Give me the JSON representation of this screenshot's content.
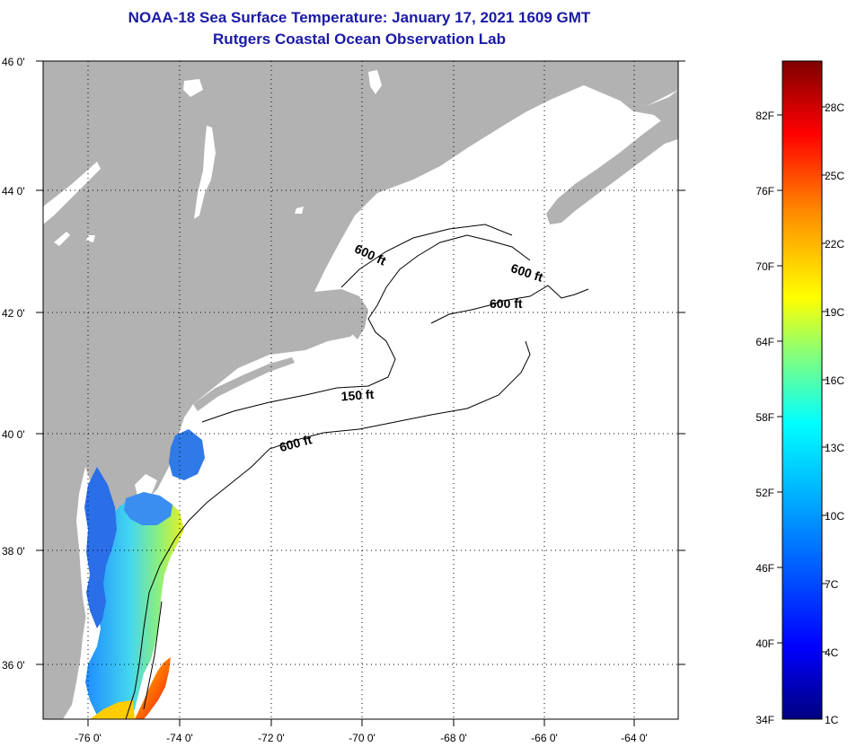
{
  "title": {
    "line1": "NOAA-18 Sea Surface Temperature:  January 17, 2021 1609 GMT",
    "line2": "Rutgers Coastal Ocean Observation Lab"
  },
  "map": {
    "lat_labels": [
      "46 0'",
      "44 0'",
      "42 0'",
      "40 0'",
      "38 0'",
      "36 0'"
    ],
    "lon_labels": [
      "-76 0'",
      "-74 0'",
      "-72 0'",
      "-70 0'",
      "-68 0'",
      "-66 0'",
      "-64 0'"
    ],
    "isobath_labels": [
      "600 ft",
      "600 ft",
      "600 ft",
      "150 ft",
      "600 ft"
    ],
    "colors": {
      "land": "#b2b2b2",
      "ocean_no_data": "#ffffff",
      "grid": "#000000"
    }
  },
  "colorbar": {
    "fahrenheit_labels": [
      "82F",
      "76F",
      "70F",
      "64F",
      "58F",
      "52F",
      "46F",
      "40F",
      "34F"
    ],
    "celsius_labels": [
      "28C",
      "25C",
      "22C",
      "19C",
      "16C",
      "13C",
      "10C",
      "7C",
      "4C",
      "1C"
    ]
  }
}
